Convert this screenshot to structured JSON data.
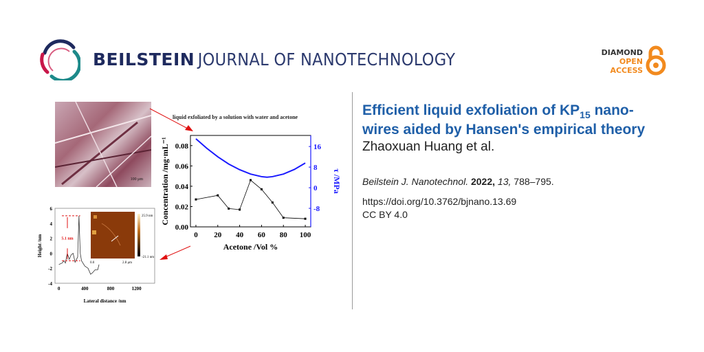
{
  "header": {
    "brand_bold": "BEILSTEIN",
    "brand_light": "JOURNAL OF NANOTECHNOLOGY",
    "open_access": {
      "line1": "DIAMOND",
      "line2": "OPEN",
      "line3": "ACCESS"
    },
    "colors": {
      "navy": "#1e2a5e",
      "crimson": "#c8174a",
      "teal": "#1d8a8a",
      "orange": "#f28a1e"
    }
  },
  "article": {
    "title_part1": "Efficient liquid exfoliation of KP",
    "title_sub": "15",
    "title_part2": " nano-",
    "title_line2": "wires aided by Hansen's empirical theory",
    "authors": "Zhaoxuan Huang et al.",
    "citation": {
      "journal": "Beilstein J. Nanotechnol.",
      "year": "2022,",
      "volume": "13,",
      "pages": "788–795."
    },
    "doi": "https://doi.org/10.3762/bjnano.13.69",
    "license": "CC BY 4.0"
  },
  "abstract_figure": {
    "caption": "liquid exfoliated by a solution with water and acetone",
    "photo_scale": "100 μm",
    "afm": {
      "annotation": "5.1 nm",
      "inset_max": "25.9 nm",
      "inset_min": "-21.1 nm",
      "inset_x0": "0.0",
      "inset_x1": "2.8 μm"
    }
  },
  "chart_data": [
    {
      "type": "line",
      "title": "",
      "xlabel": "Acetone /Vol %",
      "ylabel": "Concentration /mg·mL⁻¹",
      "y2label": "τ /MPa",
      "xlim": [
        -5,
        105
      ],
      "ylim": [
        0,
        0.09
      ],
      "y2lim": [
        -15.2,
        20.3
      ],
      "xticks": [
        "0",
        "20",
        "40",
        "60",
        "80",
        "100"
      ],
      "yticks": [
        "0.00",
        "0.02",
        "0.04",
        "0.06",
        "0.08"
      ],
      "y2ticks": [
        "-8",
        "0",
        "8",
        "16"
      ],
      "series": [
        {
          "name": "Concentration",
          "axis": "left",
          "color": "#000000",
          "x": [
            0,
            20,
            30,
            40,
            50,
            60,
            70,
            80,
            100
          ],
          "values": [
            0.027,
            0.031,
            0.018,
            0.017,
            0.046,
            0.037,
            0.024,
            0.009,
            0.008
          ]
        },
        {
          "name": "τ",
          "axis": "right",
          "color": "#1a1aff",
          "x": [
            0,
            10,
            20,
            30,
            40,
            50,
            60,
            65,
            70,
            80,
            90,
            100
          ],
          "values": [
            19,
            15.3,
            12.0,
            9.2,
            7.0,
            5.3,
            4.3,
            4.1,
            4.3,
            5.3,
            7.1,
            9.6
          ]
        }
      ]
    },
    {
      "type": "line",
      "xlabel": "Lateral distance /nm",
      "ylabel": "Height /nm",
      "xlim": [
        -60,
        1480
      ],
      "ylim": [
        -4,
        6
      ],
      "xticks": [
        "0",
        "400",
        "800",
        "1200"
      ],
      "yticks": [
        "-4",
        "-2",
        "0",
        "2",
        "4",
        "6"
      ],
      "series": [
        {
          "name": "profile",
          "color": "#333333",
          "x": [
            0,
            50,
            80,
            100,
            130,
            160,
            190,
            220,
            250,
            290,
            310,
            330,
            350,
            400,
            450,
            490,
            520,
            560,
            600,
            620
          ],
          "values": [
            -1.5,
            -1.3,
            -1.0,
            -1.3,
            0,
            -0.8,
            -0.2,
            0,
            -1.2,
            -0.5,
            5,
            0,
            -1,
            -1.7,
            -2,
            -2.8,
            -2.6,
            -2.2,
            -2.2,
            -1.5
          ]
        }
      ]
    }
  ]
}
